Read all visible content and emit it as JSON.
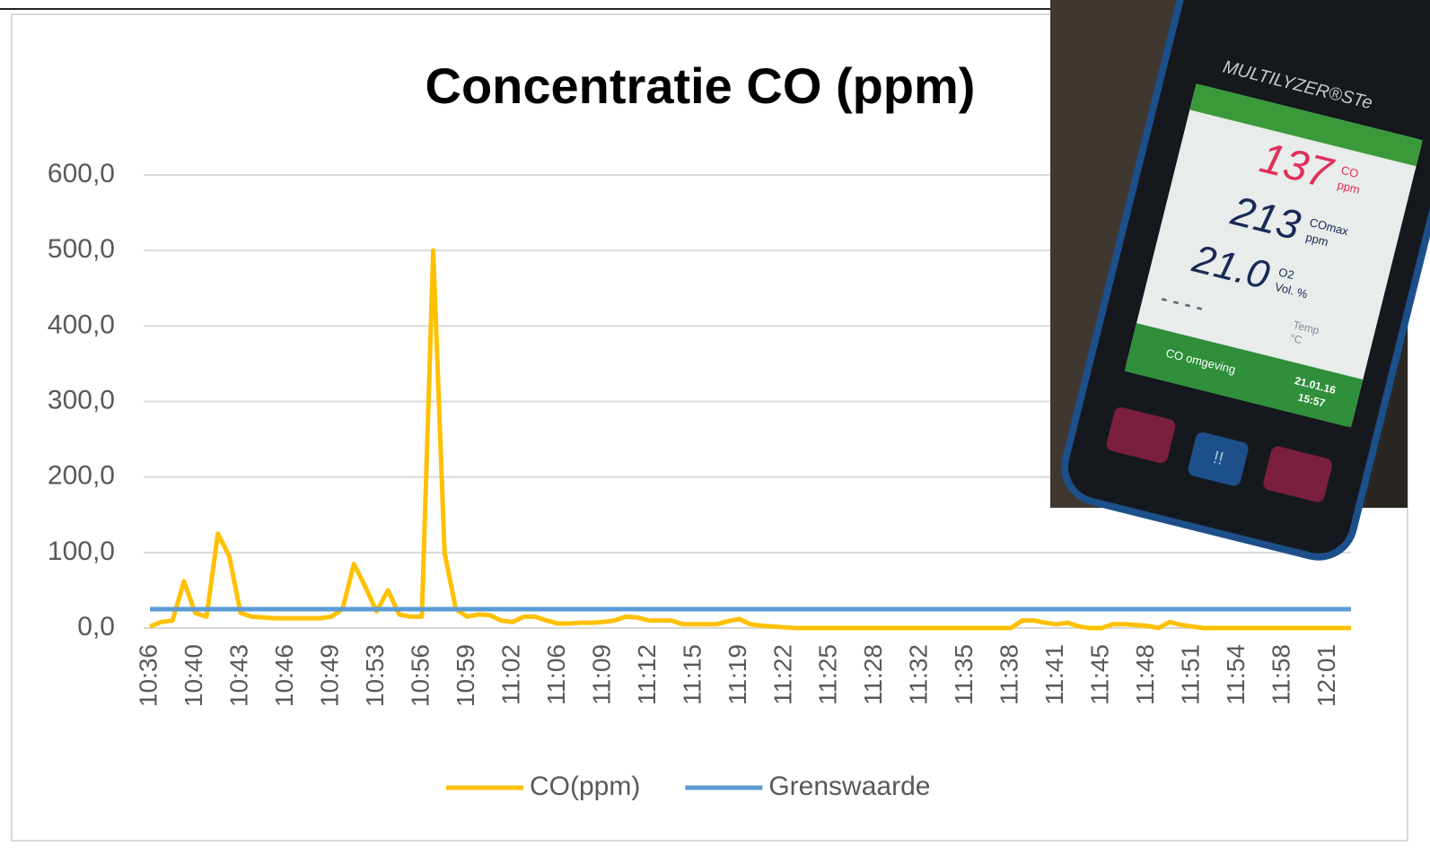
{
  "chart_data": {
    "type": "line",
    "title": "Concentratie CO (ppm)",
    "categories": [
      "10:36",
      null,
      null,
      null,
      "10:40",
      null,
      null,
      null,
      "10:43",
      null,
      null,
      null,
      "10:46",
      null,
      null,
      null,
      "10:49",
      null,
      null,
      null,
      "10:53",
      null,
      null,
      null,
      "10:56",
      null,
      null,
      null,
      "10:59",
      null,
      null,
      null,
      "11:02",
      null,
      null,
      null,
      "11:06",
      null,
      null,
      null,
      "11:09",
      null,
      null,
      null,
      "11:12",
      null,
      null,
      null,
      "11:15",
      null,
      null,
      null,
      "11:19",
      null,
      null,
      null,
      "11:22",
      null,
      null,
      null,
      "11:25",
      null,
      null,
      null,
      "11:28",
      null,
      null,
      null,
      "11:32",
      null,
      null,
      null,
      "11:35",
      null,
      null,
      null,
      "11:38",
      null,
      null,
      null,
      "11:41",
      null,
      null,
      null,
      "11:45",
      null,
      null,
      null,
      "11:48",
      null,
      null,
      null,
      "11:51",
      null,
      null,
      null,
      "11:54",
      null,
      null,
      null,
      "11:58",
      null,
      null,
      null,
      "12:01",
      null,
      null
    ],
    "series": [
      {
        "name": "CO(ppm)",
        "color": "#ffc000",
        "values": [
          2,
          8,
          10,
          62,
          20,
          15,
          125,
          95,
          20,
          15,
          14,
          13,
          13,
          13,
          13,
          13,
          15,
          25,
          85,
          55,
          22,
          50,
          18,
          15,
          15,
          500,
          100,
          25,
          15,
          18,
          17,
          10,
          8,
          15,
          15,
          10,
          6,
          6,
          7,
          7,
          8,
          10,
          15,
          14,
          10,
          10,
          10,
          5,
          5,
          5,
          5,
          9,
          12,
          5,
          3,
          2,
          1,
          0,
          0,
          0,
          0,
          0,
          0,
          0,
          0,
          0,
          0,
          0,
          0,
          0,
          0,
          0,
          0,
          0,
          0,
          0,
          0,
          10,
          10,
          7,
          5,
          7,
          2,
          0,
          0,
          5,
          5,
          4,
          3,
          0,
          8,
          4,
          2,
          0,
          0,
          0,
          0,
          0,
          0,
          0,
          0,
          0,
          0,
          0,
          0,
          0,
          0
        ]
      },
      {
        "name": "Grenswaarde",
        "color": "#5b9bd5",
        "values": [
          25,
          25,
          25,
          25,
          25,
          25,
          25,
          25,
          25,
          25,
          25,
          25,
          25,
          25,
          25,
          25,
          25,
          25,
          25,
          25,
          25,
          25,
          25,
          25,
          25,
          25,
          25,
          25,
          25,
          25,
          25,
          25,
          25,
          25,
          25,
          25,
          25,
          25,
          25,
          25,
          25,
          25,
          25,
          25,
          25,
          25,
          25,
          25,
          25,
          25,
          25,
          25,
          25,
          25,
          25,
          25,
          25,
          25,
          25,
          25,
          25,
          25,
          25,
          25,
          25,
          25,
          25,
          25,
          25,
          25,
          25,
          25,
          25,
          25,
          25,
          25,
          25,
          25,
          25,
          25,
          25,
          25,
          25,
          25,
          25,
          25,
          25,
          25,
          25,
          25,
          25,
          25,
          25,
          25,
          25,
          25,
          25,
          25,
          25,
          25,
          25,
          25,
          25,
          25,
          25,
          25,
          25
        ]
      }
    ],
    "ylim": [
      0,
      600
    ],
    "yticks": [
      {
        "value": 0,
        "label": "0,0"
      },
      {
        "value": 100,
        "label": "100,0"
      },
      {
        "value": 200,
        "label": "200,0"
      },
      {
        "value": 300,
        "label": "300,0"
      },
      {
        "value": 400,
        "label": "400,0"
      },
      {
        "value": 500,
        "label": "500,0"
      },
      {
        "value": 600,
        "label": "600,0"
      }
    ],
    "grid": true,
    "legend": "bottom"
  },
  "photo": {
    "brand": "MULTILYZER®STe",
    "co": "137",
    "co_label": "CO",
    "co_unit": "ppm",
    "comax": "213",
    "comax_label": "COmax",
    "comax_unit": "ppm",
    "o2": "21.0",
    "o2_label": "O2",
    "o2_unit": "Vol. %",
    "temp": "- - - -",
    "temp_label": "Temp",
    "temp_unit": "°C",
    "mode": "CO omgeving",
    "date": "21.01.16",
    "time": "15:57",
    "button": "!!"
  }
}
